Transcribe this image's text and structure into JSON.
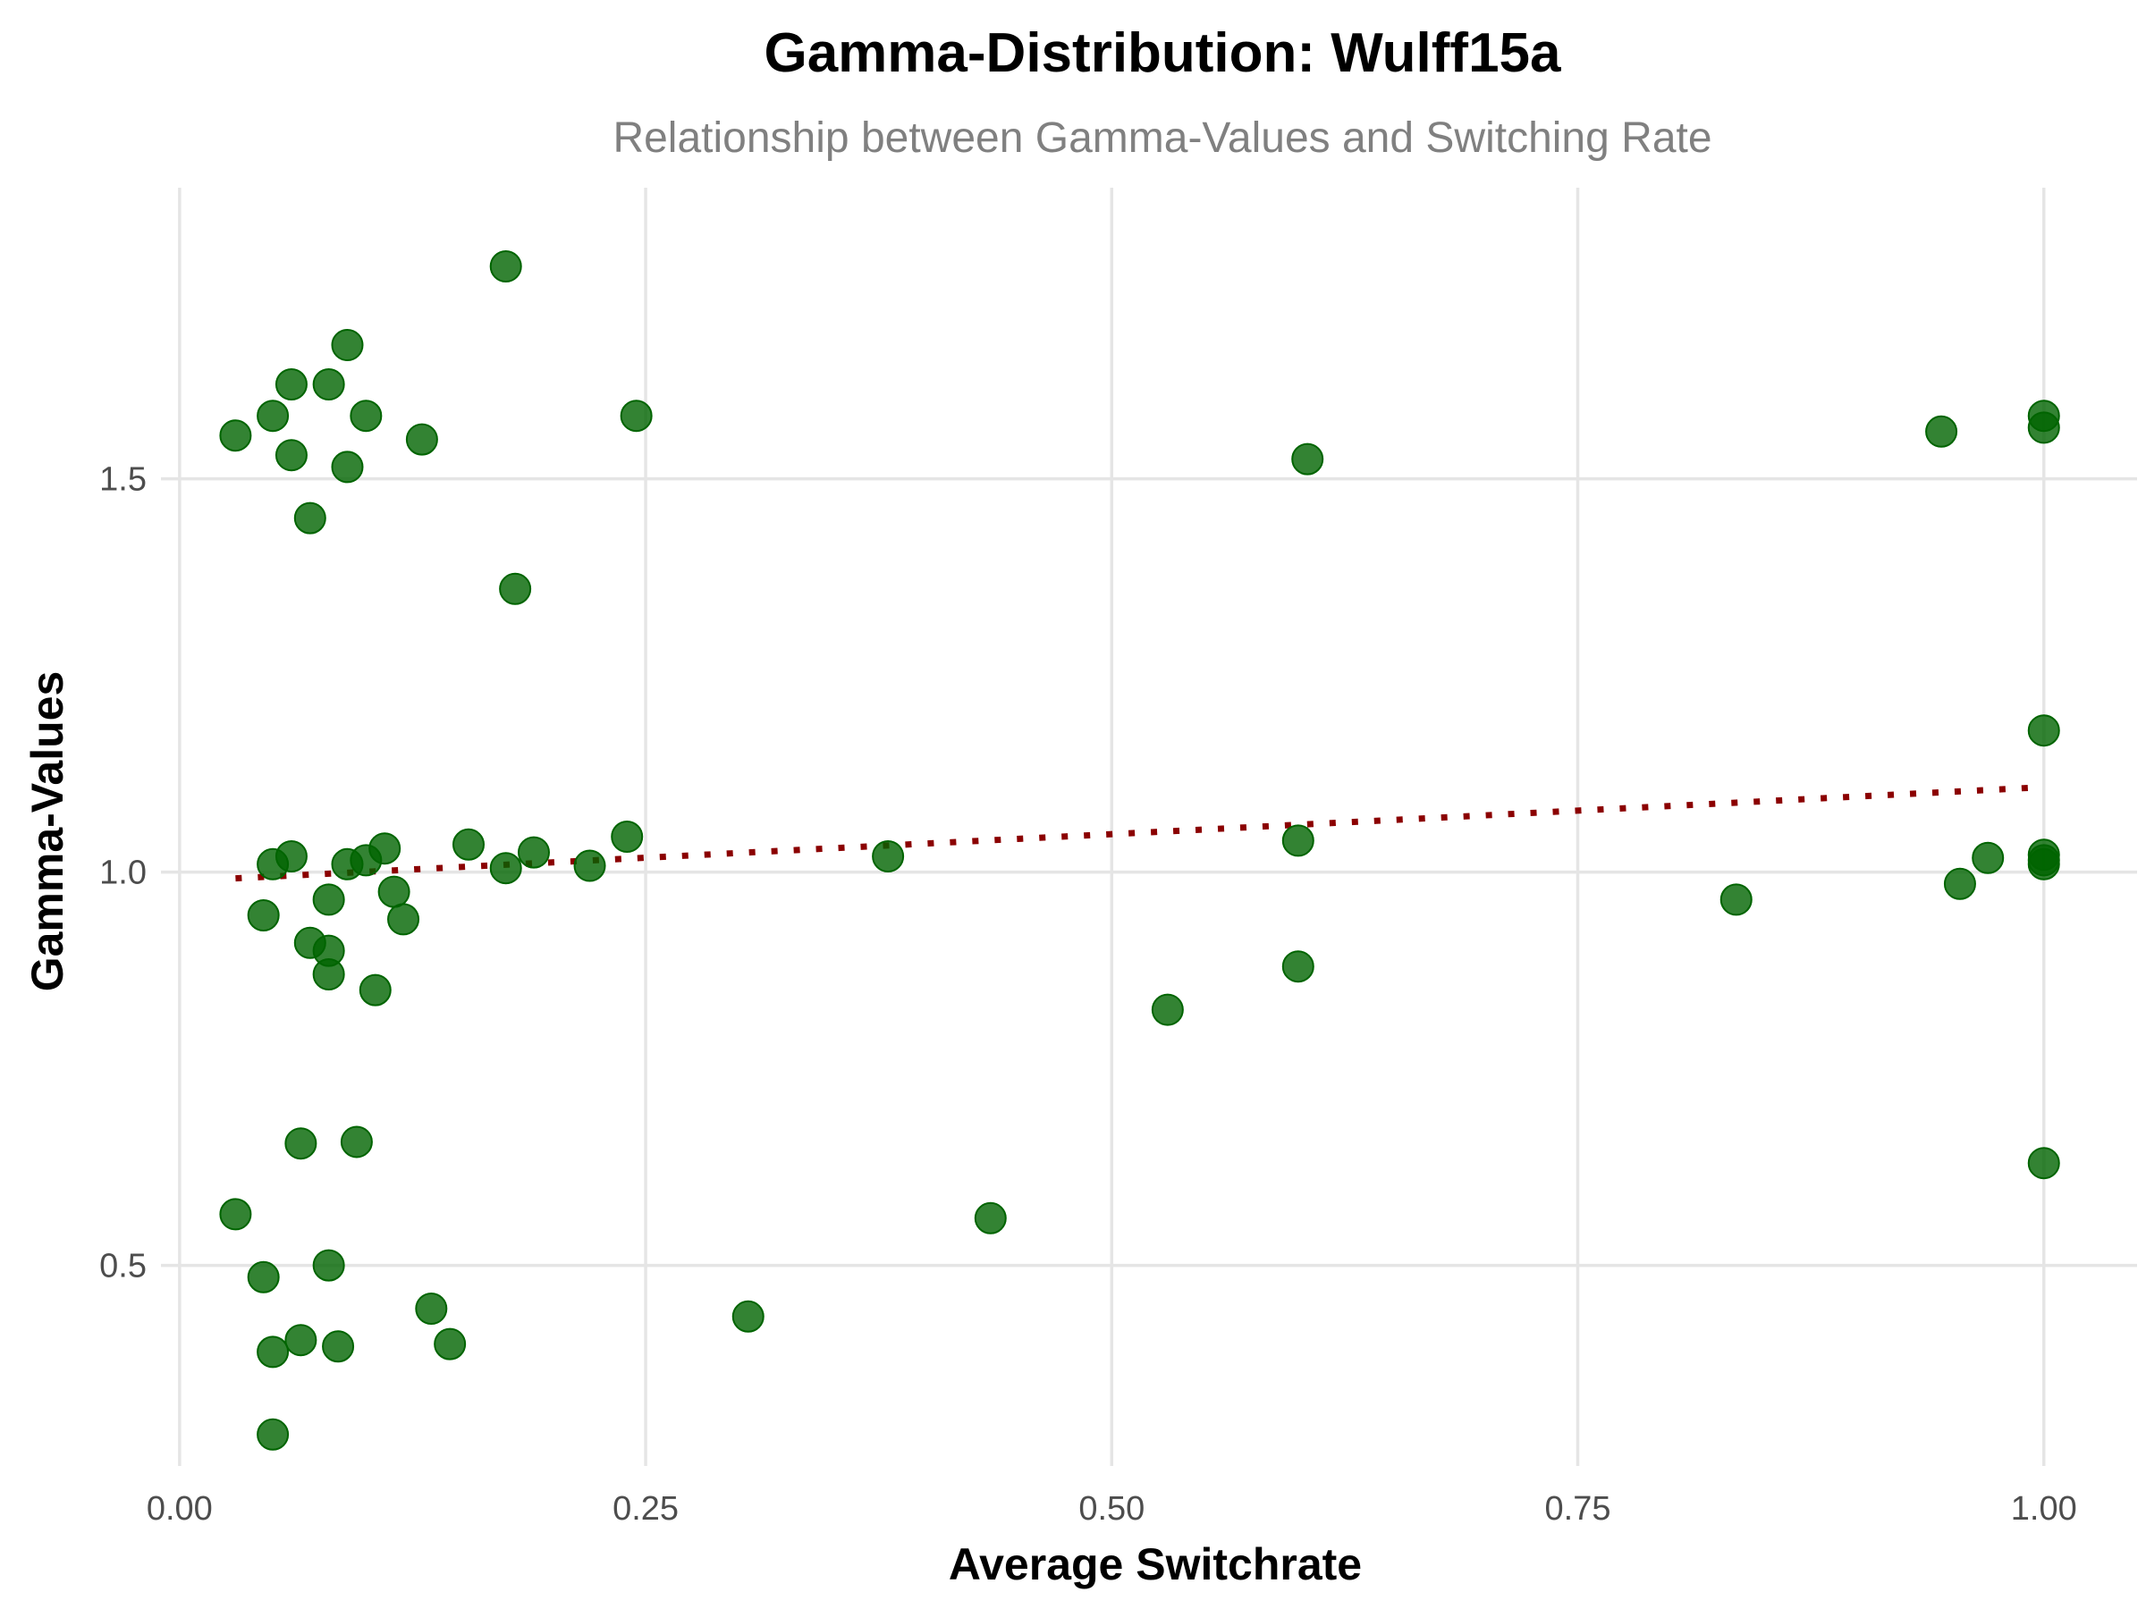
{
  "chart_data": {
    "type": "scatter",
    "title": "Gamma-Distribution: Wulff15a",
    "subtitle": "Relationship between Gamma-Values and Switching Rate",
    "xlabel": "Average Switchrate",
    "ylabel": "Gamma-Values",
    "xlim": [
      -0.01,
      1.05
    ],
    "ylim": [
      0.245,
      1.87
    ],
    "x_ticks": [
      0.0,
      0.25,
      0.5,
      0.75,
      1.0
    ],
    "x_tick_labels": [
      "0.00",
      "0.25",
      "0.50",
      "0.75",
      "1.00"
    ],
    "y_ticks": [
      0.5,
      1.0,
      1.5
    ],
    "y_tick_labels": [
      "0.5",
      "1.0",
      "1.5"
    ],
    "grid": true,
    "point_color": "#006400",
    "trend_color": "#8B0000",
    "trend_line": {
      "style": "dotted",
      "x": [
        0.03,
        1.0
      ],
      "y": [
        0.992,
        1.108
      ]
    },
    "points": [
      {
        "x": 0.03,
        "y": 1.555
      },
      {
        "x": 0.05,
        "y": 1.58
      },
      {
        "x": 0.06,
        "y": 1.62
      },
      {
        "x": 0.06,
        "y": 1.53
      },
      {
        "x": 0.07,
        "y": 1.45
      },
      {
        "x": 0.08,
        "y": 1.62
      },
      {
        "x": 0.09,
        "y": 1.67
      },
      {
        "x": 0.09,
        "y": 1.515
      },
      {
        "x": 0.1,
        "y": 1.58
      },
      {
        "x": 0.13,
        "y": 1.55
      },
      {
        "x": 0.175,
        "y": 1.77
      },
      {
        "x": 0.18,
        "y": 1.36
      },
      {
        "x": 0.245,
        "y": 1.58
      },
      {
        "x": 0.605,
        "y": 1.525
      },
      {
        "x": 0.945,
        "y": 1.56
      },
      {
        "x": 1.0,
        "y": 1.58
      },
      {
        "x": 1.0,
        "y": 1.565
      },
      {
        "x": 1.0,
        "y": 1.18
      },
      {
        "x": 0.05,
        "y": 1.01
      },
      {
        "x": 0.06,
        "y": 1.02
      },
      {
        "x": 0.045,
        "y": 0.945
      },
      {
        "x": 0.07,
        "y": 0.91
      },
      {
        "x": 0.08,
        "y": 0.965
      },
      {
        "x": 0.08,
        "y": 0.9
      },
      {
        "x": 0.08,
        "y": 0.87
      },
      {
        "x": 0.09,
        "y": 1.01
      },
      {
        "x": 0.1,
        "y": 1.015
      },
      {
        "x": 0.11,
        "y": 1.03
      },
      {
        "x": 0.115,
        "y": 0.975
      },
      {
        "x": 0.12,
        "y": 0.94
      },
      {
        "x": 0.105,
        "y": 0.85
      },
      {
        "x": 0.155,
        "y": 1.035
      },
      {
        "x": 0.175,
        "y": 1.005
      },
      {
        "x": 0.19,
        "y": 1.025
      },
      {
        "x": 0.22,
        "y": 1.008
      },
      {
        "x": 0.24,
        "y": 1.045
      },
      {
        "x": 0.38,
        "y": 1.02
      },
      {
        "x": 0.6,
        "y": 1.04
      },
      {
        "x": 0.6,
        "y": 0.88
      },
      {
        "x": 0.53,
        "y": 0.825
      },
      {
        "x": 0.835,
        "y": 0.965
      },
      {
        "x": 0.955,
        "y": 0.985
      },
      {
        "x": 0.97,
        "y": 1.018
      },
      {
        "x": 1.0,
        "y": 1.022
      },
      {
        "x": 1.0,
        "y": 1.015
      },
      {
        "x": 1.0,
        "y": 1.01
      },
      {
        "x": 0.065,
        "y": 0.655
      },
      {
        "x": 0.095,
        "y": 0.657
      },
      {
        "x": 0.03,
        "y": 0.565
      },
      {
        "x": 0.045,
        "y": 0.485
      },
      {
        "x": 0.08,
        "y": 0.5
      },
      {
        "x": 0.05,
        "y": 0.39
      },
      {
        "x": 0.065,
        "y": 0.405
      },
      {
        "x": 0.085,
        "y": 0.397
      },
      {
        "x": 0.135,
        "y": 0.445
      },
      {
        "x": 0.145,
        "y": 0.4
      },
      {
        "x": 0.05,
        "y": 0.285
      },
      {
        "x": 0.305,
        "y": 0.435
      },
      {
        "x": 0.435,
        "y": 0.56
      },
      {
        "x": 1.0,
        "y": 0.63
      }
    ]
  }
}
